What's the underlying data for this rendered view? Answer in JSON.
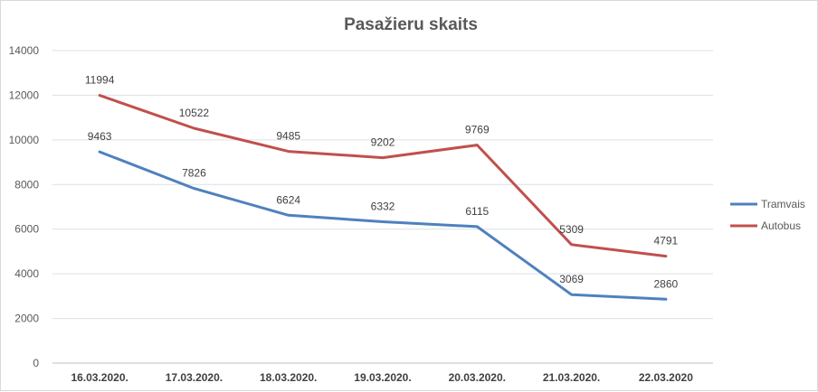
{
  "chart_data": {
    "type": "line",
    "title": "Pasažieru skaits",
    "categories": [
      "16.03.2020.",
      "17.03.2020.",
      "18.03.2020.",
      "19.03.2020.",
      "20.03.2020.",
      "21.03.2020.",
      "22.03.2020"
    ],
    "series": [
      {
        "name": "Tramvais",
        "values": [
          9463,
          7826,
          6624,
          6332,
          6115,
          3069,
          2860
        ],
        "color": "#4f81bd"
      },
      {
        "name": "Autobus",
        "values": [
          11994,
          10522,
          9485,
          9202,
          9769,
          5309,
          4791
        ],
        "color": "#c0504d"
      }
    ],
    "ylim": [
      0,
      14000
    ],
    "yticks": [
      0,
      2000,
      4000,
      6000,
      8000,
      10000,
      12000,
      14000
    ],
    "grid": true,
    "legend": "right",
    "xlabel": "",
    "ylabel": ""
  }
}
